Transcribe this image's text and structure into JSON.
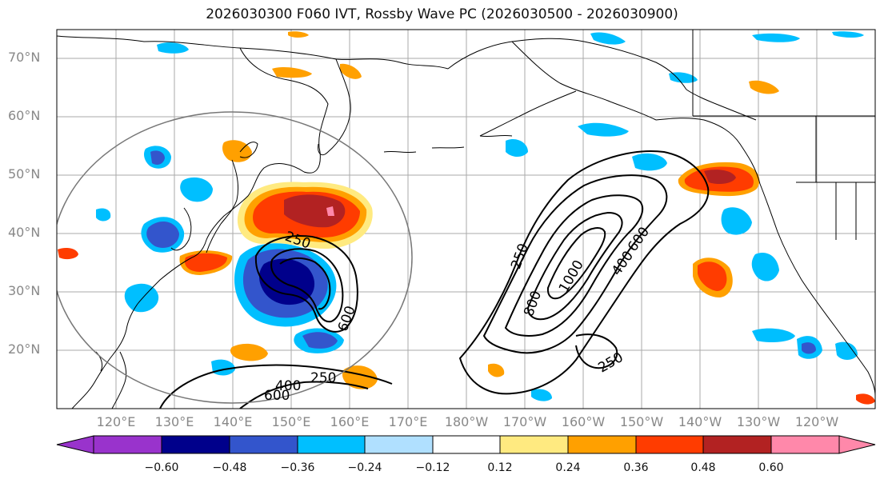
{
  "title": "2026030300 F060 IVT, Rossby Wave PC (2026030500 - 2026030900)",
  "lat_labels": [
    "70°N",
    "60°N",
    "50°N",
    "40°N",
    "30°N",
    "20°N"
  ],
  "lon_labels": [
    "120°E",
    "130°E",
    "140°E",
    "150°E",
    "160°E",
    "170°E",
    "180°W",
    "170°W",
    "160°W",
    "150°W",
    "140°W",
    "130°W",
    "120°W"
  ],
  "contour_labels": [
    "250",
    "250",
    "250",
    "250",
    "400",
    "400",
    "600",
    "600",
    "600",
    "800",
    "1000"
  ],
  "colorbar": {
    "ticks": [
      "−0.60",
      "−0.48",
      "−0.36",
      "−0.24",
      "−0.12",
      "0.12",
      "0.24",
      "0.36",
      "0.48",
      "0.60"
    ],
    "colors": [
      "#9933cc",
      "#00008b",
      "#3355cc",
      "#00bfff",
      "#b0e0ff",
      "#ffffff",
      "#ffea80",
      "#ffa000",
      "#ff3c00",
      "#b22222",
      "#ff88aa"
    ]
  }
}
